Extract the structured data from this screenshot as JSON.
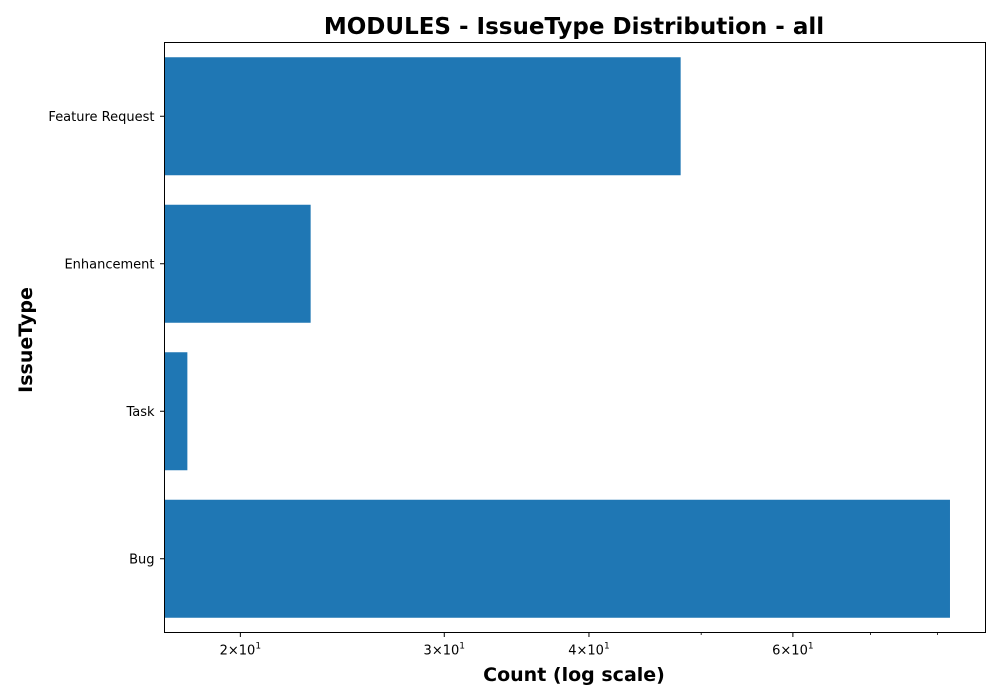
{
  "chart_data": {
    "type": "bar",
    "orientation": "horizontal",
    "title": "MODULES - IssueType Distribution - all",
    "xlabel": "Count (log scale)",
    "ylabel": "IssueType",
    "x_scale": "log",
    "xlim": [
      17.2,
      88
    ],
    "categories": [
      "Bug",
      "Task",
      "Enhancement",
      "Feature Request"
    ],
    "values": [
      82,
      18,
      23,
      48
    ],
    "bar_color": "#1f77b4",
    "x_ticks_major": [
      {
        "value": 20,
        "mantissa": "2",
        "base": "10",
        "exp": "1"
      },
      {
        "value": 30,
        "mantissa": "3",
        "base": "10",
        "exp": "1"
      },
      {
        "value": 40,
        "mantissa": "4",
        "base": "10",
        "exp": "1"
      },
      {
        "value": 60,
        "mantissa": "6",
        "base": "10",
        "exp": "1"
      }
    ],
    "x_ticks_minor": [
      50,
      70,
      80
    ],
    "grid": false
  }
}
